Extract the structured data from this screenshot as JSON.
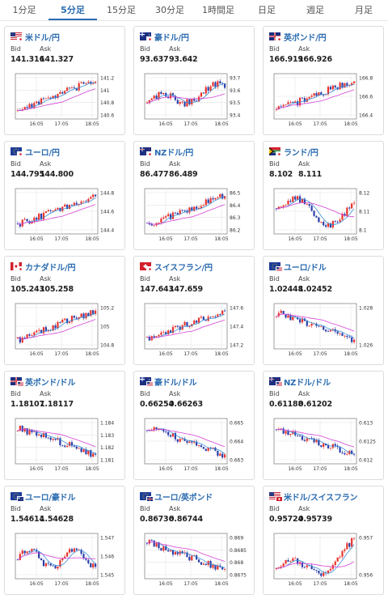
{
  "tabs": [
    {
      "label": "1分足",
      "active": false
    },
    {
      "label": "5分足",
      "active": true
    },
    {
      "label": "15分足",
      "active": false
    },
    {
      "label": "30分足",
      "active": false
    },
    {
      "label": "1時間足",
      "active": false
    },
    {
      "label": "日足",
      "active": false
    },
    {
      "label": "週足",
      "active": false
    },
    {
      "label": "月足",
      "active": false
    }
  ],
  "labels": {
    "bid": "Bid",
    "ask": "Ask"
  },
  "x_ticks": [
    "16:05",
    "17:05",
    "18:05"
  ],
  "colors": {
    "up": "#e8332c",
    "down": "#2b3fa8",
    "ma_short": "#3b8fd6",
    "ma_long": "#d640d6",
    "link": "#2a6bb0"
  },
  "pairs": [
    {
      "name": "米ドル/円",
      "flags": [
        "us",
        "jp"
      ],
      "bid": "141.316",
      "ask": "141.327",
      "y_ticks": [
        "141.2",
        "141",
        "140.8",
        "140.6"
      ],
      "trend": "up"
    },
    {
      "name": "豪ドル/円",
      "flags": [
        "au",
        "jp"
      ],
      "bid": "93.637",
      "ask": "93.642",
      "y_ticks": [
        "93.7",
        "93.6",
        "93.5",
        "93.4"
      ],
      "trend": "flat_up"
    },
    {
      "name": "英ポンド/円",
      "flags": [
        "gb",
        "jp"
      ],
      "bid": "166.919",
      "ask": "166.926",
      "y_ticks": [
        "166.8",
        "166.6",
        "166.4"
      ],
      "trend": "up"
    },
    {
      "name": "ユーロ/円",
      "flags": [
        "eu",
        "jp"
      ],
      "bid": "144.795",
      "ask": "144.800",
      "y_ticks": [
        "144.8",
        "144.6",
        "144.4"
      ],
      "trend": "up"
    },
    {
      "name": "NZドル/円",
      "flags": [
        "nz",
        "jp"
      ],
      "bid": "86.477",
      "ask": "86.489",
      "y_ticks": [
        "86.5",
        "86.4",
        "86.3",
        "86.2"
      ],
      "trend": "up"
    },
    {
      "name": "ランド/円",
      "flags": [
        "za",
        "jp"
      ],
      "bid": "8.102",
      "ask": "8.111",
      "y_ticks": [
        "8.12",
        "8.11",
        "8.1"
      ],
      "trend": "wave"
    },
    {
      "name": "カナダドル/円",
      "flags": [
        "ca",
        "jp"
      ],
      "bid": "105.243",
      "ask": "105.258",
      "y_ticks": [
        "105.2",
        "105",
        "104.8"
      ],
      "trend": "up"
    },
    {
      "name": "スイスフラン/円",
      "flags": [
        "ch",
        "jp"
      ],
      "bid": "147.643",
      "ask": "147.659",
      "y_ticks": [
        "147.6",
        "147.4",
        "147.2"
      ],
      "trend": "up"
    },
    {
      "name": "ユーロ/ドル",
      "flags": [
        "eu",
        "us"
      ],
      "bid": "1.02448",
      "ask": "1.02452",
      "y_ticks": [
        "1.028",
        "1.026"
      ],
      "trend": "down"
    },
    {
      "name": "英ポンド/ドル",
      "flags": [
        "gb",
        "us"
      ],
      "bid": "1.18107",
      "ask": "1.18117",
      "y_ticks": [
        "1.184",
        "1.183",
        "1.182",
        "1.181"
      ],
      "trend": "down"
    },
    {
      "name": "豪ドル/ドル",
      "flags": [
        "au",
        "us"
      ],
      "bid": "0.66254",
      "ask": "0.66263",
      "y_ticks": [
        "0.665",
        "0.664",
        "0.663"
      ],
      "trend": "down"
    },
    {
      "name": "NZドル/ドル",
      "flags": [
        "nz",
        "us"
      ],
      "bid": "0.61188",
      "ask": "0.61202",
      "y_ticks": [
        "0.613",
        "0.6125",
        "0.612"
      ],
      "trend": "down"
    },
    {
      "name": "ユーロ/豪ドル",
      "flags": [
        "eu",
        "au"
      ],
      "bid": "1.54614",
      "ask": "1.54628",
      "y_ticks": [
        "1.547",
        "1.546",
        "1.545"
      ],
      "trend": "flat"
    },
    {
      "name": "ユーロ/英ポンド",
      "flags": [
        "eu",
        "gb"
      ],
      "bid": "0.86736",
      "ask": "0.86744",
      "y_ticks": [
        "0.869",
        "0.8685",
        "0.868",
        "0.8675"
      ],
      "trend": "down"
    },
    {
      "name": "米ドル/スイスフラン",
      "flags": [
        "us",
        "ch"
      ],
      "bid": "0.95724",
      "ask": "0.95739",
      "y_ticks": [
        "0.957",
        "0.956"
      ],
      "trend": "up_late"
    }
  ]
}
